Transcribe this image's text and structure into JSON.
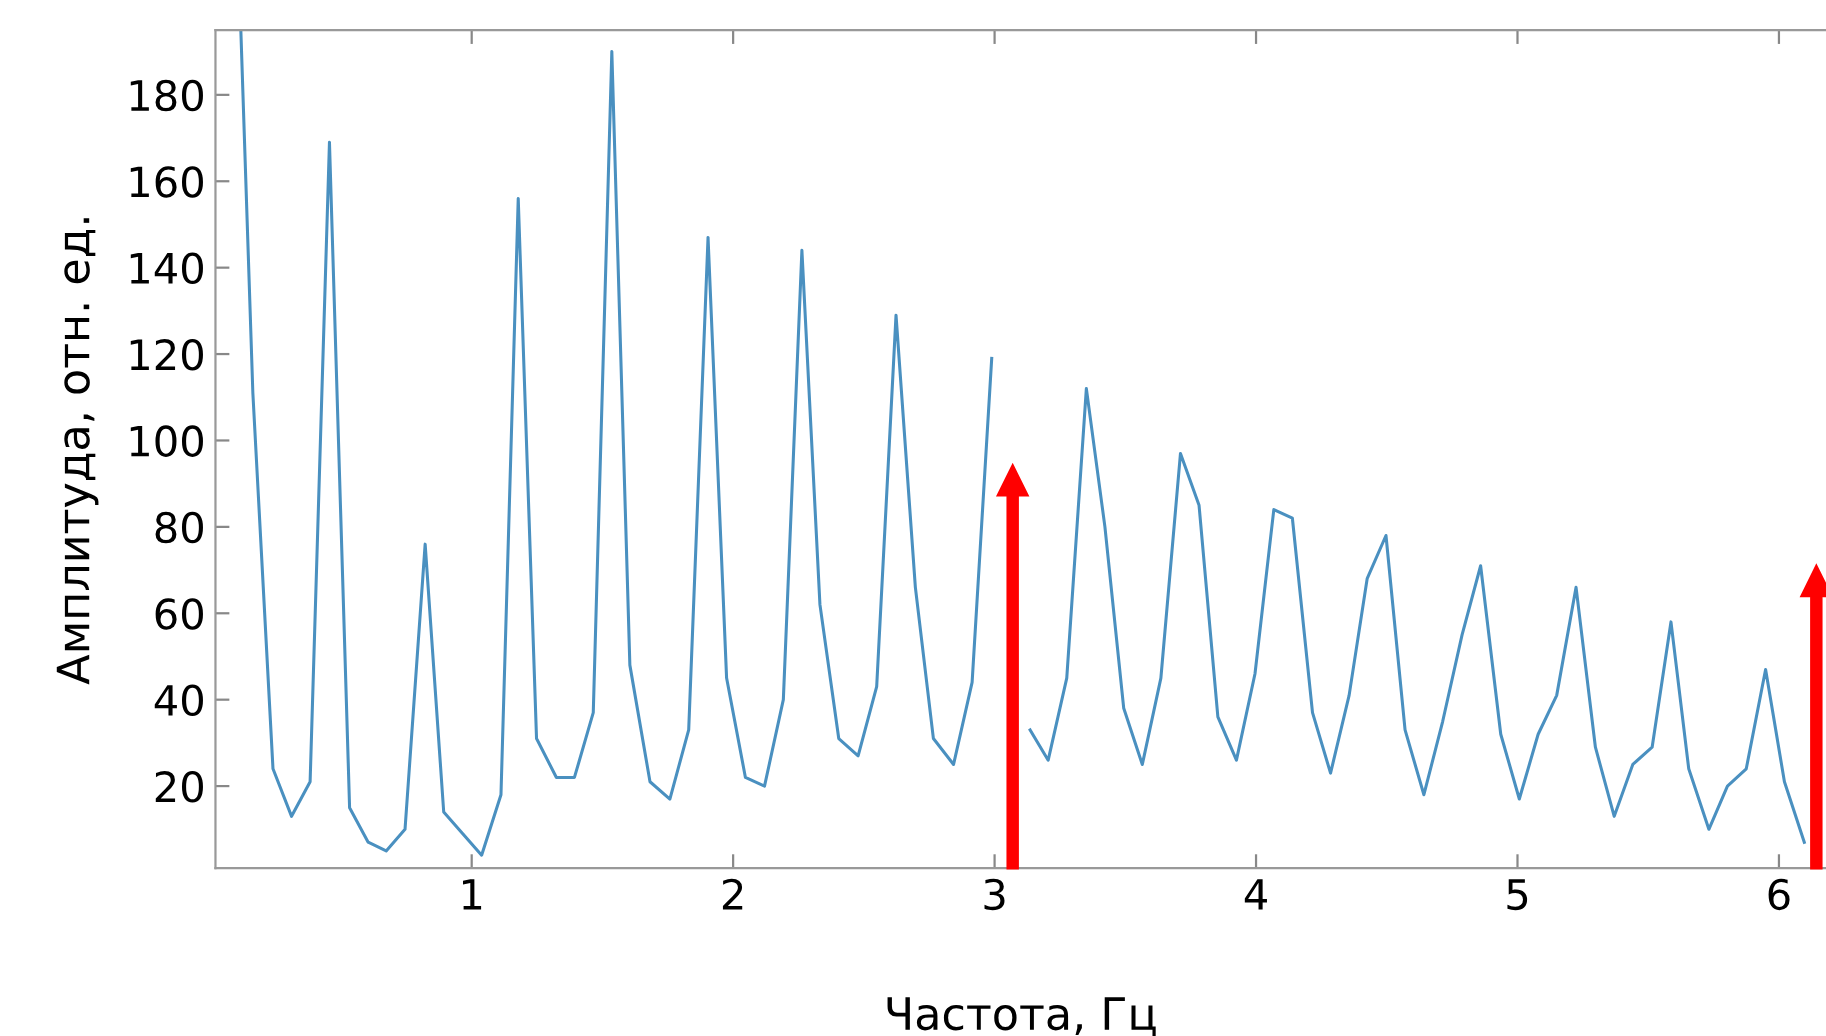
{
  "chart_data": {
    "type": "line",
    "xlabel": "Частота, Гц",
    "ylabel": "Амплитуда, отн. ед.",
    "xlim": [
      0.02,
      6.18
    ],
    "ylim": [
      1,
      195
    ],
    "xticks": [
      1,
      2,
      3,
      4,
      5,
      6
    ],
    "yticks": [
      20,
      40,
      60,
      80,
      100,
      120,
      140,
      160,
      180
    ],
    "grid": false,
    "marker": "none",
    "line_style": "solid",
    "series": [
      {
        "color": "#4a90c0",
        "x": [
          0.117,
          0.163,
          0.24,
          0.311,
          0.382,
          0.456,
          0.533,
          0.604,
          0.673,
          0.745,
          0.822,
          0.893,
          0.965,
          1.038,
          1.112,
          1.178,
          1.248,
          1.324,
          1.393,
          1.465,
          1.536,
          1.605,
          1.682,
          1.758,
          1.83,
          1.904,
          1.975,
          2.047,
          2.12,
          2.192,
          2.263,
          2.332,
          2.404,
          2.478,
          2.549,
          2.623,
          2.697,
          2.766,
          2.843,
          2.914,
          2.989,
          3.06,
          3.136,
          3.205,
          3.276,
          3.351,
          3.422,
          3.494,
          3.565,
          3.636,
          3.711,
          3.782,
          3.854,
          3.925,
          3.996,
          4.068,
          4.139,
          4.216,
          4.285,
          4.356,
          4.425,
          4.497,
          4.57,
          4.642,
          4.714,
          4.788,
          4.859,
          4.936,
          5.007,
          5.079,
          5.15,
          5.224,
          5.298,
          5.37,
          5.441,
          5.515,
          5.587,
          5.655,
          5.732,
          5.803,
          5.875,
          5.949,
          6.021,
          6.097
        ],
        "values": [
          195,
          111,
          24,
          13,
          21,
          169,
          15,
          7,
          5,
          10,
          76,
          14,
          9,
          4,
          18,
          156,
          31,
          22,
          22,
          37,
          190,
          48,
          21,
          17,
          33,
          147,
          45,
          22,
          20,
          40,
          144,
          62,
          31,
          27,
          43,
          129,
          66,
          31,
          25,
          44,
          119,
          null,
          33,
          26,
          45,
          112,
          80,
          38,
          25,
          45,
          97,
          85,
          36,
          26,
          46,
          84,
          82,
          37,
          23,
          41,
          68,
          78,
          33,
          18,
          35,
          55,
          71,
          32,
          17,
          32,
          41,
          66,
          29,
          13,
          25,
          29,
          58,
          24,
          10,
          20,
          24,
          47,
          21,
          7
        ]
      }
    ]
  }
}
